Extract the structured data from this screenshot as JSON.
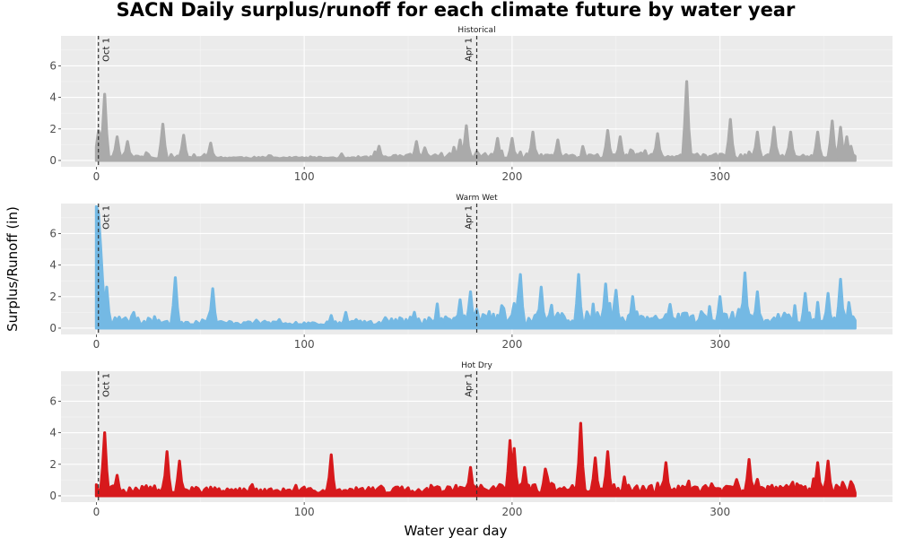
{
  "chart_data": {
    "type": "area",
    "title": "SACN Daily surplus/runoff for each climate future by water year",
    "xlabel": "Water year day",
    "ylabel": "Surplus/Runoff (in)",
    "xlim": [
      -17,
      383
    ],
    "ylim": [
      -0.4,
      7.9
    ],
    "x_ticks": [
      0,
      100,
      200,
      300
    ],
    "y_ticks": [
      0,
      2,
      4,
      6
    ],
    "grid": true,
    "vlines": [
      {
        "x": 1,
        "label": "Oct 1"
      },
      {
        "x": 183,
        "label": "Apr 1"
      }
    ],
    "panels": [
      {
        "name": "Historical",
        "color": "#aaaaaa",
        "baseline": 0.15,
        "noise": 0.55,
        "seed": 11,
        "profile": [
          [
            0,
            0.55
          ],
          [
            60,
            0.25
          ],
          [
            100,
            0.18
          ],
          [
            130,
            0.3
          ],
          [
            165,
            0.75
          ],
          [
            200,
            0.6
          ],
          [
            260,
            0.55
          ],
          [
            300,
            0.6
          ],
          [
            365,
            0.45
          ]
        ],
        "peaks": [
          [
            1,
            1.9
          ],
          [
            2,
            1.4
          ],
          [
            4,
            4.2
          ],
          [
            10,
            1.5
          ],
          [
            15,
            1.2
          ],
          [
            32,
            2.3
          ],
          [
            42,
            1.6
          ],
          [
            55,
            1.1
          ],
          [
            136,
            0.9
          ],
          [
            154,
            1.2
          ],
          [
            175,
            1.3
          ],
          [
            178,
            2.2
          ],
          [
            193,
            1.4
          ],
          [
            200,
            1.4
          ],
          [
            210,
            1.8
          ],
          [
            222,
            1.3
          ],
          [
            246,
            1.9
          ],
          [
            252,
            1.5
          ],
          [
            270,
            1.7
          ],
          [
            284,
            5.0
          ],
          [
            305,
            2.6
          ],
          [
            318,
            1.8
          ],
          [
            326,
            2.1
          ],
          [
            334,
            1.8
          ],
          [
            347,
            1.8
          ],
          [
            354,
            2.5
          ],
          [
            358,
            2.1
          ],
          [
            361,
            1.5
          ],
          [
            363,
            0.9
          ]
        ]
      },
      {
        "name": "Warm Wet",
        "color": "#74b9e4",
        "baseline": 0.3,
        "noise": 0.7,
        "seed": 23,
        "profile": [
          [
            0,
            1.0
          ],
          [
            25,
            0.6
          ],
          [
            80,
            0.3
          ],
          [
            120,
            0.35
          ],
          [
            165,
            1.0
          ],
          [
            200,
            1.3
          ],
          [
            260,
            1.0
          ],
          [
            300,
            1.2
          ],
          [
            365,
            1.0
          ]
        ],
        "peaks": [
          [
            0,
            7.7
          ],
          [
            1,
            7.3
          ],
          [
            2,
            5.3
          ],
          [
            3,
            3.0
          ],
          [
            5,
            2.6
          ],
          [
            38,
            3.2
          ],
          [
            56,
            2.5
          ],
          [
            113,
            0.8
          ],
          [
            120,
            1.0
          ],
          [
            175,
            1.8
          ],
          [
            180,
            2.3
          ],
          [
            204,
            3.4
          ],
          [
            214,
            2.6
          ],
          [
            232,
            3.4
          ],
          [
            245,
            2.8
          ],
          [
            250,
            2.4
          ],
          [
            258,
            2.0
          ],
          [
            300,
            2.0
          ],
          [
            312,
            3.5
          ],
          [
            318,
            2.3
          ],
          [
            341,
            2.2
          ],
          [
            352,
            2.2
          ],
          [
            358,
            3.1
          ],
          [
            364,
            0.6
          ]
        ]
      },
      {
        "name": "Hot Dry",
        "color": "#d7191c",
        "baseline": 0.2,
        "noise": 0.75,
        "seed": 37,
        "profile": [
          [
            0,
            0.8
          ],
          [
            40,
            0.65
          ],
          [
            80,
            0.45
          ],
          [
            120,
            0.5
          ],
          [
            165,
            0.7
          ],
          [
            200,
            0.85
          ],
          [
            260,
            0.75
          ],
          [
            300,
            0.7
          ],
          [
            365,
            0.8
          ]
        ],
        "peaks": [
          [
            0,
            0.7
          ],
          [
            4,
            4.0
          ],
          [
            10,
            1.3
          ],
          [
            34,
            2.8
          ],
          [
            40,
            2.2
          ],
          [
            113,
            2.6
          ],
          [
            180,
            1.8
          ],
          [
            199,
            3.5
          ],
          [
            201,
            3.0
          ],
          [
            206,
            1.8
          ],
          [
            216,
            1.7
          ],
          [
            233,
            4.6
          ],
          [
            240,
            2.4
          ],
          [
            246,
            2.8
          ],
          [
            274,
            2.1
          ],
          [
            314,
            2.3
          ],
          [
            347,
            2.1
          ],
          [
            352,
            2.2
          ],
          [
            363,
            0.9
          ]
        ]
      }
    ]
  }
}
